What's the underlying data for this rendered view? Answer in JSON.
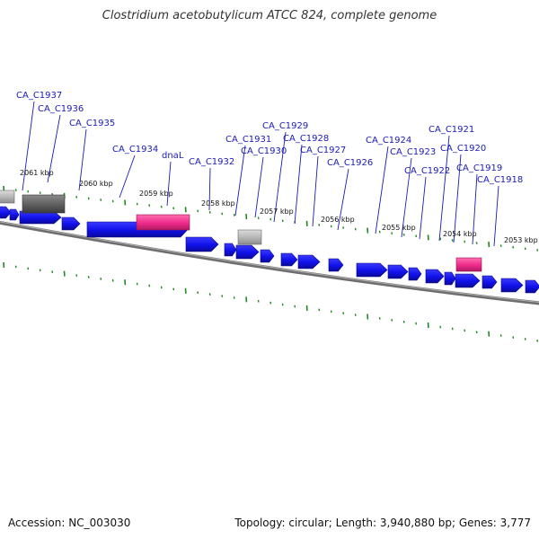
{
  "title": "Clostridium acetobutylicum ATCC 824, complete genome",
  "footer": {
    "accession": "Accession: NC_003030",
    "summary": "Topology: circular; Length: 3,940,880 bp; Genes: 3,777"
  },
  "colors": {
    "gene": "#1a1af0",
    "gene_dark": "#0c0c90",
    "rna": "#ee2a8a",
    "pseudo_light": "#b8b8b8",
    "pseudo_dark": "#666666",
    "backbone": "#8a8a8a",
    "tick": "#1f8a1f",
    "label": "#1a1ab8"
  },
  "scale": {
    "unit": "kbp",
    "labels": [
      {
        "kbp": 2061,
        "text": "2061 kbp"
      },
      {
        "kbp": 2060,
        "text": "2060 kbp"
      },
      {
        "kbp": 2059,
        "text": "2059 kbp"
      },
      {
        "kbp": 2058,
        "text": "2058 kbp"
      },
      {
        "kbp": 2057,
        "text": "2057 kbp"
      },
      {
        "kbp": 2056,
        "text": "2056 kbp"
      },
      {
        "kbp": 2055,
        "text": "2055 kbp"
      },
      {
        "kbp": 2054,
        "text": "2054 kbp"
      },
      {
        "kbp": 2053,
        "text": "2053 kbp"
      }
    ]
  },
  "genes": [
    {
      "name": "CA_C1937"
    },
    {
      "name": "CA_C1936"
    },
    {
      "name": "CA_C1935"
    },
    {
      "name": "CA_C1934"
    },
    {
      "name": "dnaL"
    },
    {
      "name": "CA_C1932"
    },
    {
      "name": "CA_C1931"
    },
    {
      "name": "CA_C1930"
    },
    {
      "name": "CA_C1929"
    },
    {
      "name": "CA_C1928"
    },
    {
      "name": "CA_C1927"
    },
    {
      "name": "CA_C1926"
    },
    {
      "name": "CA_C1924"
    },
    {
      "name": "CA_C1923"
    },
    {
      "name": "CA_C1922"
    },
    {
      "name": "CA_C1921"
    },
    {
      "name": "CA_C1920"
    },
    {
      "name": "CA_C1919"
    },
    {
      "name": "CA_C1918"
    }
  ]
}
